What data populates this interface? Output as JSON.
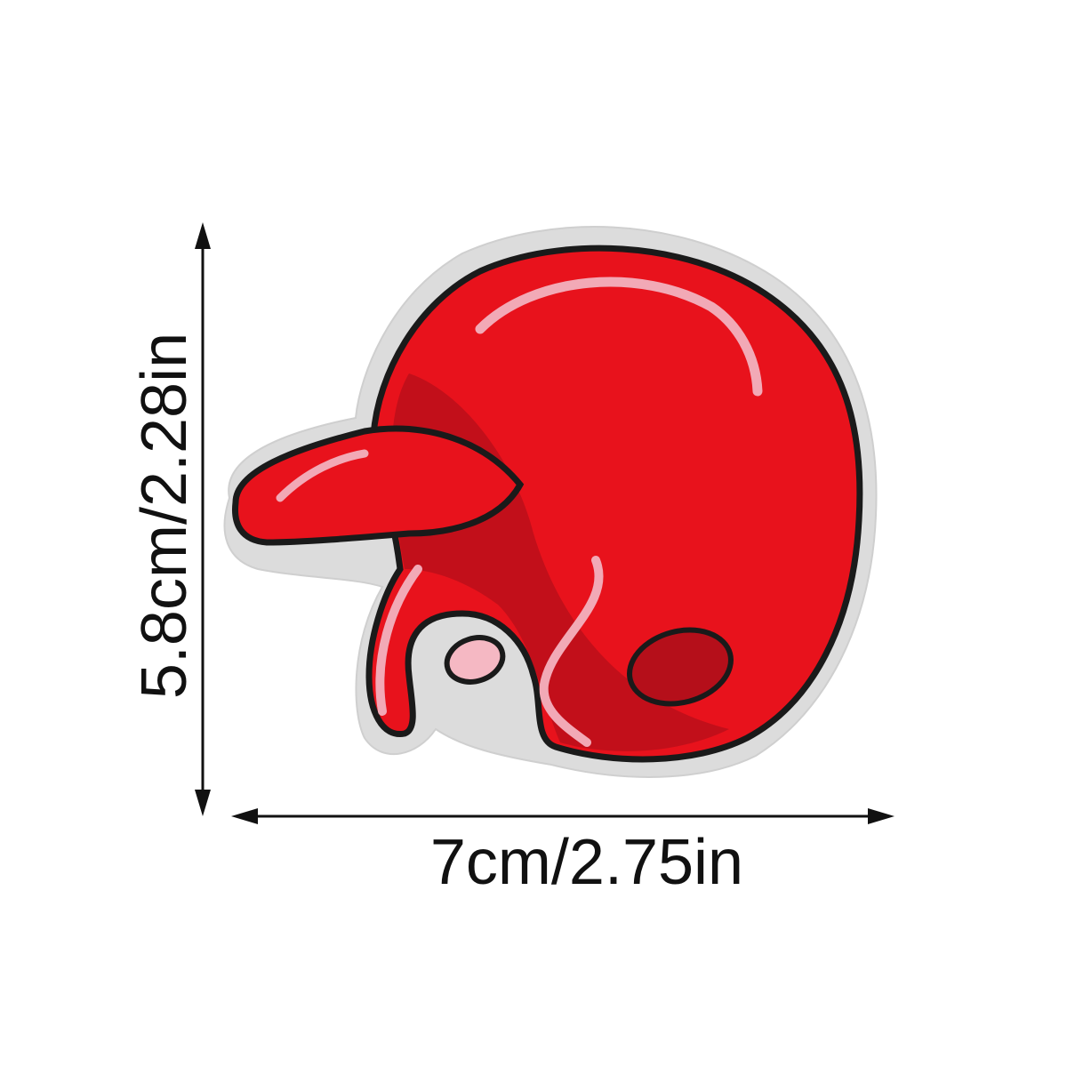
{
  "product": {
    "name_icon": "baseball-helmet-patch",
    "colors": {
      "helmet_red": "#e8121c",
      "helmet_dark_red": "#b50f1a",
      "outline": "#1a1a1a",
      "highlight_pink": "#f2a9b6",
      "felt_border": "#d9d9d9"
    }
  },
  "dimensions": {
    "width_label": "7cm/2.75in",
    "height_label": "5.8cm/2.28in"
  }
}
